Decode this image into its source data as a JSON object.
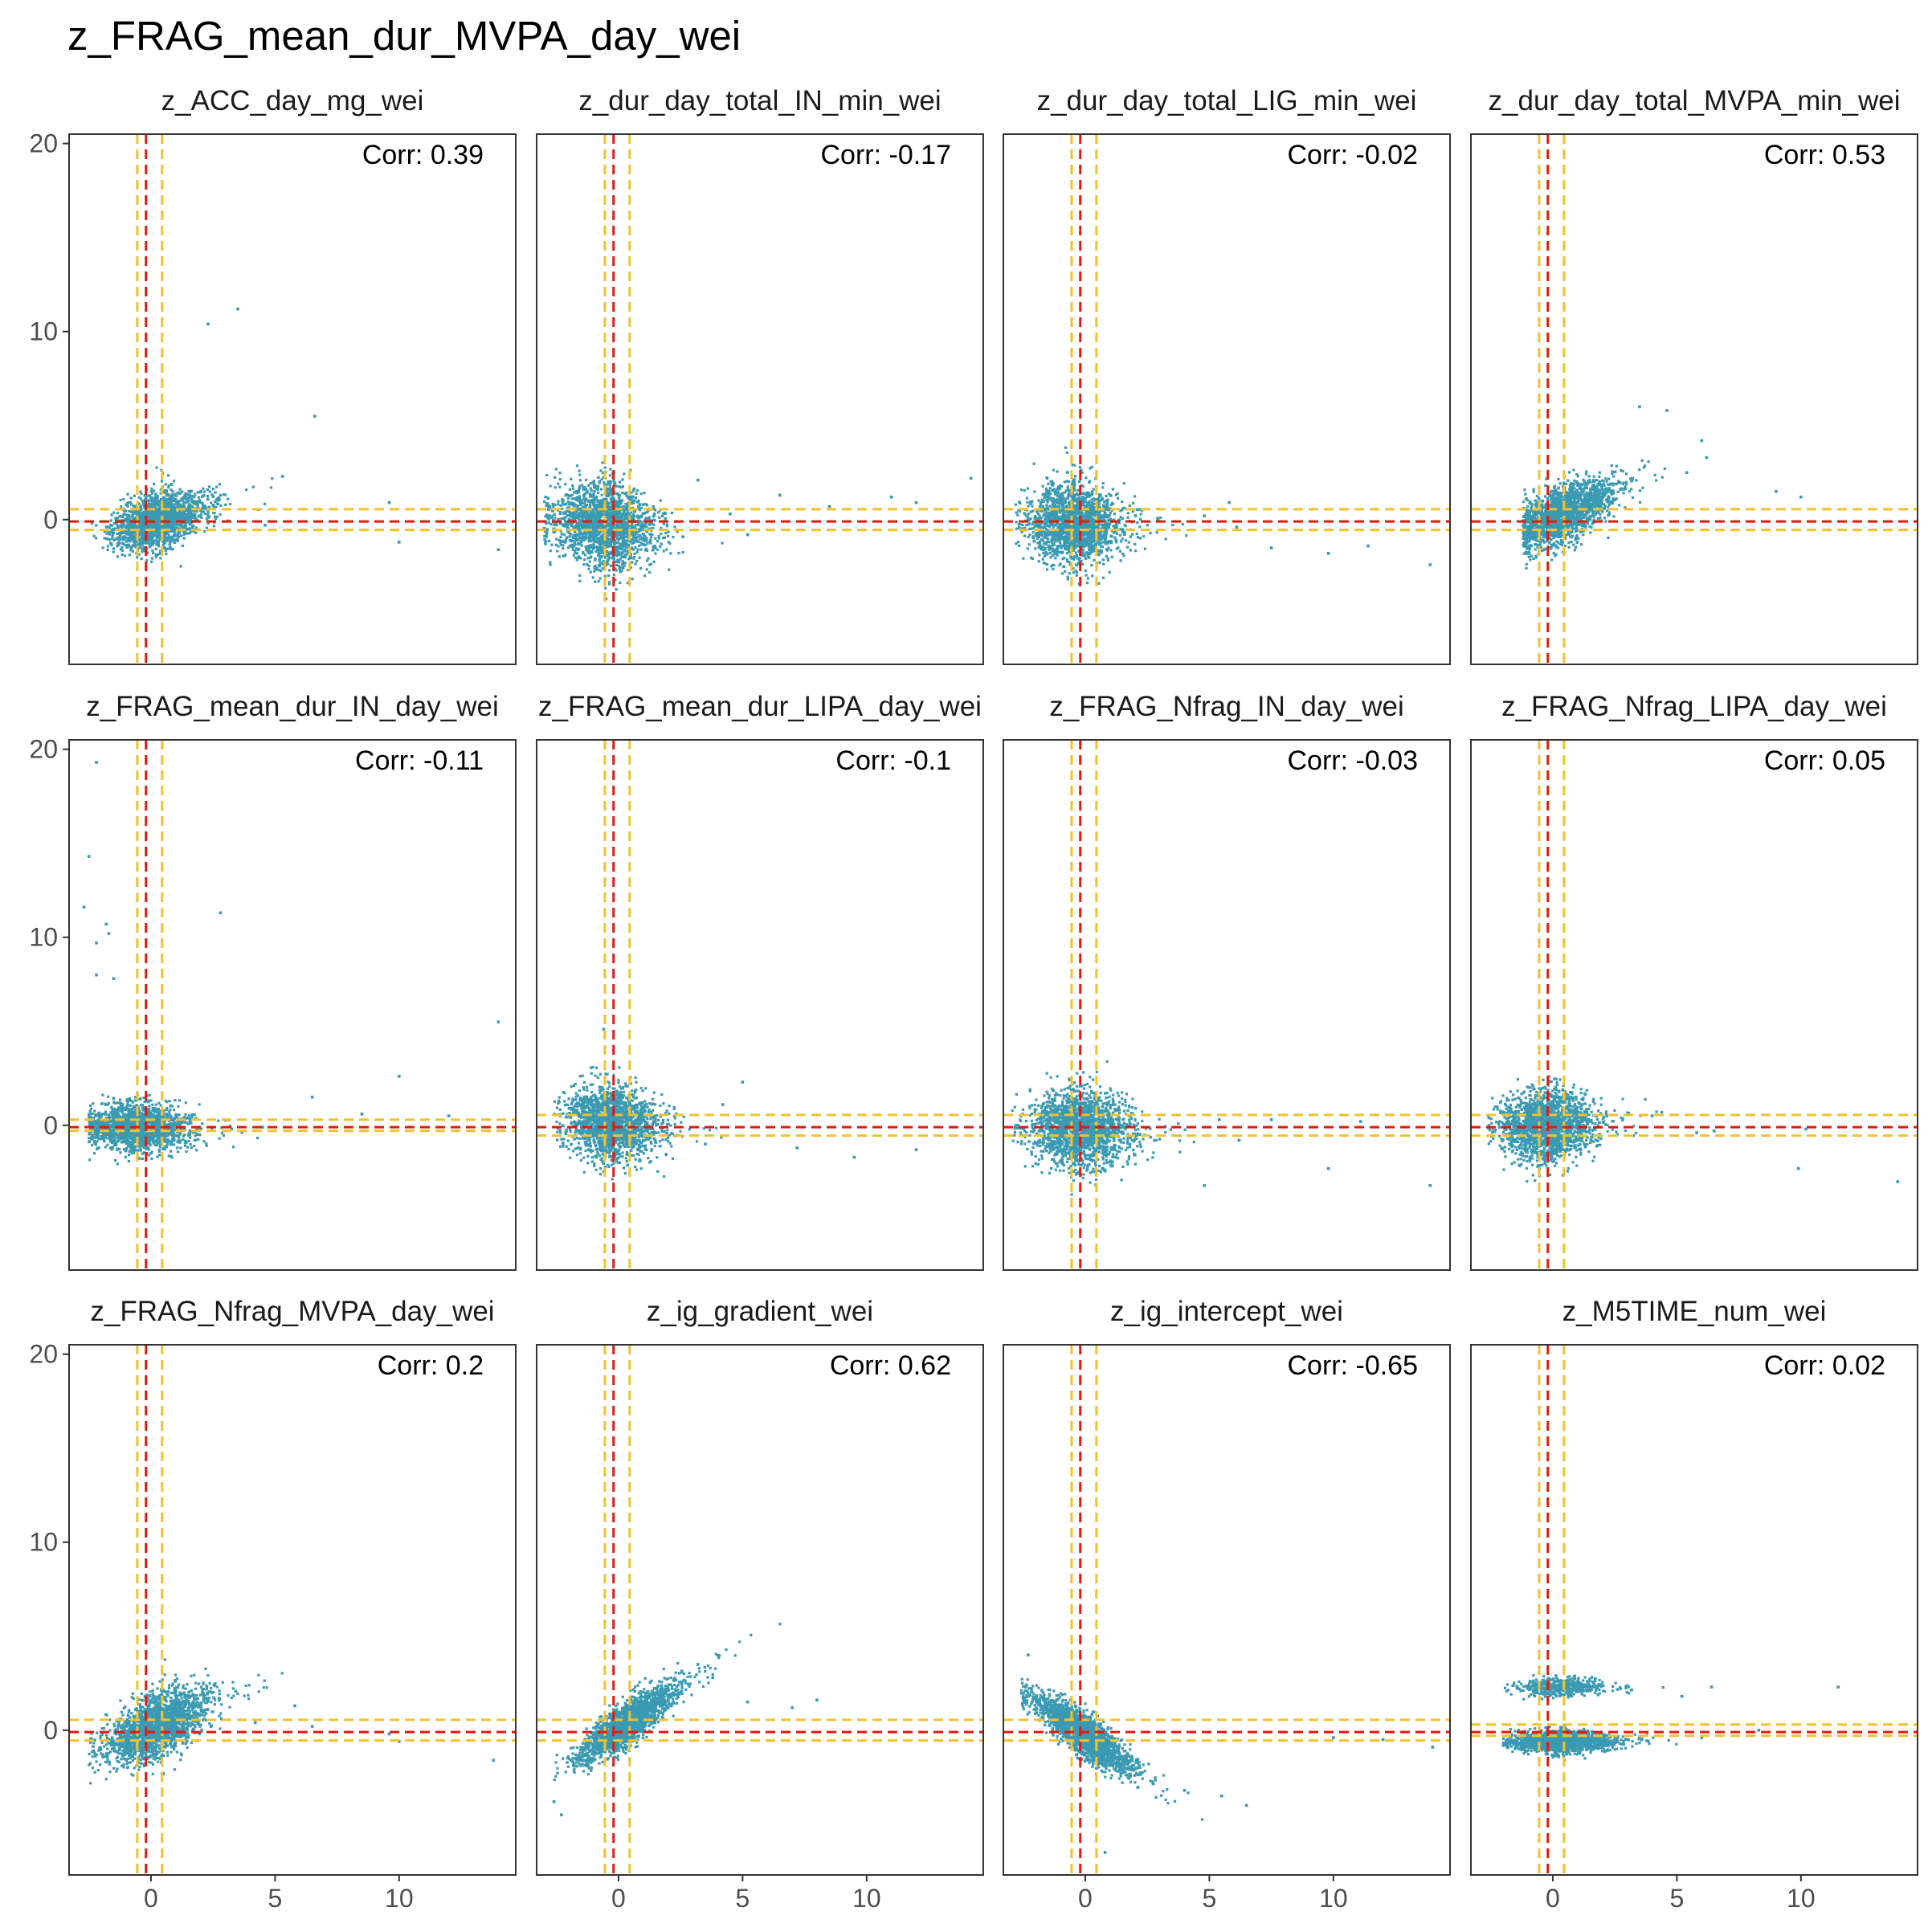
{
  "title": "z_FRAG_mean_dur_MVPA_day_wei",
  "chart_data": {
    "type": "scatter",
    "title": "z_FRAG_mean_dur_MVPA_day_wei",
    "xlabel": "",
    "ylabel": "",
    "xlim": [
      -3.3,
      14.7
    ],
    "ylim": [
      -7.7,
      20.5
    ],
    "x_ticks": [
      0,
      5,
      10
    ],
    "y_ticks": [
      0,
      10,
      20
    ],
    "grid": false,
    "colors": {
      "points": "#3b9ab2",
      "mean_line": "#e4180e",
      "band_line": "#f2c12e",
      "panel_border": "#333333"
    },
    "reference_lines": {
      "x_mean": -0.2,
      "x_band": [
        -0.55,
        0.45
      ],
      "y_mean": -0.1,
      "y_band": [
        -0.5,
        0.5
      ]
    },
    "panels": [
      {
        "label": "z_ACC_day_mg_wei",
        "corr": "Corr: 0.39",
        "y_band": [
          -0.55,
          0.55
        ],
        "cluster": {
          "cx": 0.3,
          "cy": 0.0,
          "sx": 0.9,
          "sy": 0.75,
          "slope": 0.35,
          "xmin": -2.5
        },
        "outliers": [
          [
            2.3,
            10.4
          ],
          [
            3.5,
            11.2
          ],
          [
            6.6,
            5.5
          ],
          [
            9.6,
            0.9
          ],
          [
            14.0,
            -1.6
          ],
          [
            10.0,
            -1.2
          ],
          [
            5.3,
            2.3
          ],
          [
            4.6,
            -0.3
          ]
        ]
      },
      {
        "label": "z_dur_day_total_IN_min_wei",
        "corr": "Corr: -0.17",
        "y_band": [
          -0.55,
          0.55
        ],
        "cluster": {
          "cx": -0.6,
          "cy": -0.3,
          "sx": 1.0,
          "sy": 1.2,
          "slope": -0.15,
          "xmin": -3.0
        },
        "outliers": [
          [
            3.2,
            2.1
          ],
          [
            6.5,
            1.3
          ],
          [
            8.5,
            0.7
          ],
          [
            11.0,
            1.2
          ],
          [
            14.2,
            2.2
          ],
          [
            12.0,
            0.9
          ],
          [
            5.2,
            -0.8
          ],
          [
            4.5,
            0.3
          ]
        ]
      },
      {
        "label": "z_dur_day_total_LIG_min_wei",
        "corr": "Corr: -0.02",
        "y_band": [
          -0.55,
          0.55
        ],
        "cluster": {
          "cx": -0.5,
          "cy": -0.2,
          "sx": 0.9,
          "sy": 1.1,
          "slope": -0.05,
          "xmin": -2.8
        },
        "outliers": [
          [
            7.5,
            -1.5
          ],
          [
            9.8,
            -1.8
          ],
          [
            11.4,
            -1.4
          ],
          [
            13.9,
            -2.4
          ],
          [
            6.1,
            -0.4
          ],
          [
            4.8,
            0.2
          ],
          [
            5.8,
            0.9
          ]
        ]
      },
      {
        "label": "z_dur_day_total_MVPA_min_wei",
        "corr": "Corr: 0.53",
        "y_band": [
          -0.55,
          0.55
        ],
        "cluster": {
          "cx": 0.4,
          "cy": 0.3,
          "sx": 1.0,
          "sy": 0.8,
          "slope": 0.55,
          "xmin": -1.2
        },
        "outliers": [
          [
            3.5,
            6.0
          ],
          [
            4.6,
            5.8
          ],
          [
            6.0,
            4.2
          ],
          [
            9.0,
            1.5
          ],
          [
            10.0,
            1.2
          ],
          [
            6.2,
            3.3
          ],
          [
            5.4,
            2.5
          ]
        ]
      },
      {
        "label": "z_FRAG_mean_dur_IN_day_wei",
        "corr": "Corr: -0.11",
        "y_band": [
          -0.3,
          0.3
        ],
        "cluster": {
          "cx": -0.6,
          "cy": -0.1,
          "sx": 1.0,
          "sy": 0.65,
          "slope": -0.05,
          "xmin": -2.5
        },
        "outliers": [
          [
            -2.2,
            19.3
          ],
          [
            -2.5,
            14.3
          ],
          [
            -2.7,
            11.6
          ],
          [
            -1.8,
            10.7
          ],
          [
            -2.2,
            9.7
          ],
          [
            -1.7,
            10.2
          ],
          [
            -2.2,
            8.0
          ],
          [
            -1.5,
            7.8
          ],
          [
            2.8,
            11.3
          ],
          [
            14.0,
            5.5
          ],
          [
            10.0,
            2.6
          ],
          [
            6.5,
            1.5
          ],
          [
            8.5,
            0.6
          ],
          [
            12.0,
            0.5
          ],
          [
            4.5,
            -0.1
          ]
        ]
      },
      {
        "label": "z_FRAG_mean_dur_LIPA_day_wei",
        "corr": "Corr: -0.1",
        "y_band": [
          -0.55,
          0.55
        ],
        "cluster": {
          "cx": -0.3,
          "cy": 0.1,
          "sx": 0.9,
          "sy": 1.0,
          "slope": -0.1,
          "xmin": -2.6
        },
        "outliers": [
          [
            5.0,
            2.3
          ],
          [
            7.2,
            -1.2
          ],
          [
            9.5,
            -1.7
          ],
          [
            12.0,
            -1.3
          ],
          [
            -0.6,
            5.1
          ],
          [
            3.5,
            -1.0
          ],
          [
            4.2,
            1.1
          ]
        ]
      },
      {
        "label": "z_FRAG_Nfrag_IN_day_wei",
        "corr": "Corr: -0.03",
        "y_band": [
          -0.55,
          0.55
        ],
        "cluster": {
          "cx": -0.2,
          "cy": -0.2,
          "sx": 1.0,
          "sy": 1.1,
          "slope": -0.05,
          "xmin": -3.0
        },
        "outliers": [
          [
            5.4,
            0.3
          ],
          [
            6.2,
            -0.8
          ],
          [
            7.5,
            0.3
          ],
          [
            9.8,
            -2.3
          ],
          [
            13.9,
            -3.2
          ],
          [
            4.8,
            -3.2
          ],
          [
            11.1,
            0.2
          ]
        ]
      },
      {
        "label": "z_FRAG_Nfrag_LIPA_day_wei",
        "corr": "Corr: 0.05",
        "y_band": [
          -0.55,
          0.55
        ],
        "cluster": {
          "cx": -0.3,
          "cy": 0.0,
          "sx": 0.9,
          "sy": 1.0,
          "slope": 0.05,
          "xmin": -2.6
        },
        "outliers": [
          [
            5.8,
            -0.4
          ],
          [
            6.5,
            -0.3
          ],
          [
            9.9,
            -2.3
          ],
          [
            13.9,
            -3.0
          ],
          [
            4.0,
            0.5
          ],
          [
            10.2,
            -0.2
          ]
        ]
      },
      {
        "label": "z_FRAG_Nfrag_MVPA_day_wei",
        "corr": "Corr: 0.2",
        "y_band": [
          -0.55,
          0.55
        ],
        "cluster": {
          "cx": 0.2,
          "cy": 0.2,
          "sx": 1.0,
          "sy": 0.9,
          "slope": 0.55,
          "xmin": -2.5
        },
        "outliers": [
          [
            5.8,
            1.3
          ],
          [
            6.5,
            0.2
          ],
          [
            9.6,
            -0.2
          ],
          [
            10.0,
            -0.6
          ],
          [
            13.8,
            -1.6
          ],
          [
            4.2,
            0.4
          ]
        ]
      },
      {
        "label": "z_ig_gradient_wei",
        "corr": "Corr: 0.62",
        "y_band": [
          -0.55,
          0.55
        ],
        "cluster": {
          "cx": 0.3,
          "cy": 0.3,
          "sx": 1.0,
          "sy": 0.6,
          "slope": 0.9,
          "xmin": -2.6
        },
        "outliers": [
          [
            -2.3,
            -4.5
          ],
          [
            -2.6,
            -3.8
          ],
          [
            3.2,
            3.5
          ],
          [
            5.2,
            1.5
          ],
          [
            7.0,
            1.2
          ],
          [
            8.0,
            1.6
          ],
          [
            3.8,
            2.8
          ]
        ]
      },
      {
        "label": "z_ig_intercept_wei",
        "corr": "Corr: -0.65",
        "y_band": [
          -0.55,
          0.55
        ],
        "cluster": {
          "cx": -0.1,
          "cy": -0.2,
          "sx": 1.0,
          "sy": 0.6,
          "slope": -0.9,
          "xmin": -2.6
        },
        "outliers": [
          [
            -2.3,
            4.0
          ],
          [
            0.8,
            -6.5
          ],
          [
            4.0,
            -3.2
          ],
          [
            5.5,
            -3.5
          ],
          [
            6.5,
            -4.0
          ],
          [
            10.0,
            -0.4
          ],
          [
            12.0,
            -0.5
          ],
          [
            14.0,
            -0.9
          ]
        ]
      },
      {
        "label": "z_M5TIME_num_wei",
        "corr": "Corr: 0.02",
        "y_band": [
          -0.3,
          0.3
        ],
        "bimodal": true,
        "cluster": {
          "cx": 0.3,
          "cy": -0.6,
          "sx": 1.0,
          "sy": 0.3,
          "slope": 0.0,
          "xmin": -2.0
        },
        "cluster2": {
          "cx": 0.3,
          "cy": 2.3,
          "sx": 0.9,
          "sy": 0.25,
          "slope": 0.0,
          "xmin": -2.0
        },
        "outliers": [
          [
            11.5,
            2.3
          ],
          [
            6.4,
            2.3
          ],
          [
            5.2,
            1.8
          ],
          [
            8.3,
            0.0
          ],
          [
            6.0,
            -0.4
          ]
        ]
      }
    ]
  }
}
